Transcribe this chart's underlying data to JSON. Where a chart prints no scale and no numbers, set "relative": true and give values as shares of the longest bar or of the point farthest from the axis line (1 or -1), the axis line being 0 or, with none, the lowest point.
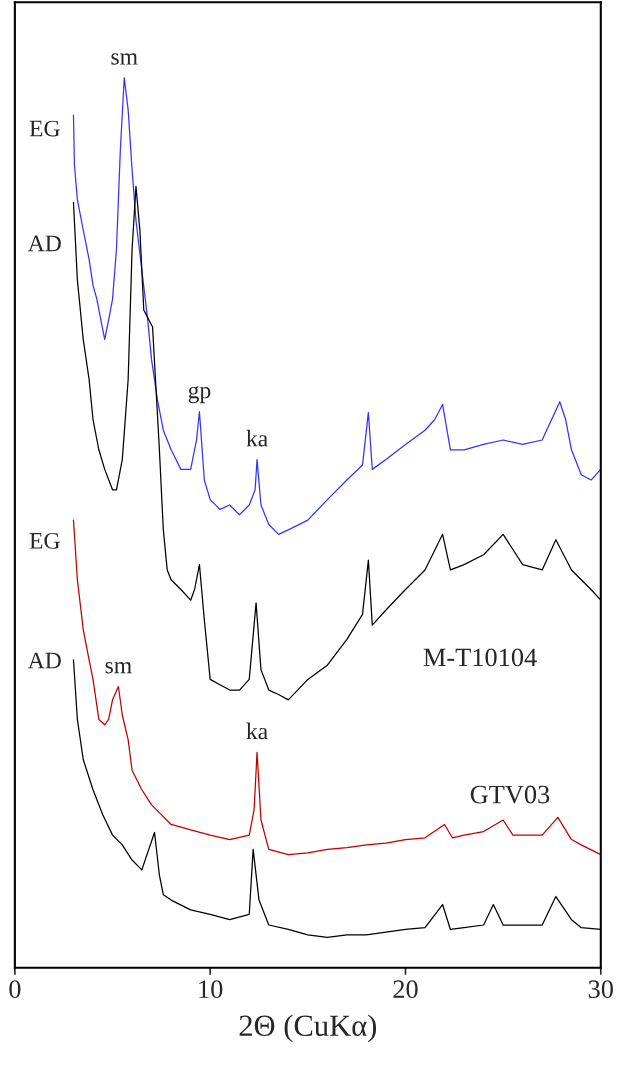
{
  "chart_data": {
    "type": "line",
    "relative": true,
    "xlabel": "2Θ (CuKα)",
    "xlim": [
      0,
      30
    ],
    "xticks": [
      0,
      10,
      20,
      30
    ],
    "grid": false,
    "legend": false,
    "series": [
      {
        "color": "#3333ff",
        "x": [
          3.0,
          3.05,
          3.2,
          3.5,
          3.8,
          4.0,
          4.2,
          4.4,
          4.6,
          4.8,
          5.0,
          5.2,
          5.4,
          5.6,
          5.8,
          6.0,
          6.2,
          6.5,
          6.8,
          7.0,
          7.3,
          7.6,
          8.0,
          8.5,
          9.0,
          9.3,
          9.45,
          9.7,
          10.0,
          10.5,
          11.0,
          11.5,
          12.0,
          12.3,
          12.4,
          12.6,
          13.0,
          13.5,
          14.0,
          15.0,
          16.0,
          17.0,
          17.8,
          18.1,
          18.3,
          19.0,
          20.0,
          21.0,
          21.5,
          21.9,
          22.3,
          23.0,
          24.0,
          25.0,
          26.0,
          27.0,
          27.9,
          28.2,
          28.5,
          29.0,
          29.5,
          30.0
        ],
        "values": [
          0.958,
          0.902,
          0.863,
          0.829,
          0.796,
          0.767,
          0.751,
          0.728,
          0.706,
          0.728,
          0.751,
          0.807,
          0.919,
          1.0,
          0.964,
          0.897,
          0.84,
          0.784,
          0.728,
          0.683,
          0.638,
          0.604,
          0.582,
          0.56,
          0.56,
          0.593,
          0.625,
          0.548,
          0.526,
          0.515,
          0.52,
          0.509,
          0.52,
          0.537,
          0.571,
          0.52,
          0.498,
          0.487,
          0.492,
          0.503,
          0.526,
          0.548,
          0.565,
          0.624,
          0.56,
          0.571,
          0.588,
          0.604,
          0.616,
          0.633,
          0.582,
          0.582,
          0.588,
          0.593,
          0.588,
          0.593,
          0.636,
          0.616,
          0.582,
          0.554,
          0.548,
          0.56
        ]
      },
      {
        "color": "#000000",
        "x": [
          3.0,
          3.2,
          3.5,
          3.8,
          4.0,
          4.3,
          4.6,
          5.0,
          5.2,
          5.5,
          5.8,
          6.0,
          6.2,
          6.4,
          6.6,
          7.05,
          7.2,
          7.4,
          7.6,
          7.8,
          8.0,
          8.5,
          9.0,
          9.2,
          9.45,
          9.7,
          10.0,
          10.5,
          11.0,
          11.5,
          12.0,
          12.35,
          12.6,
          13.0,
          13.5,
          14.0,
          15.0,
          16.0,
          17.0,
          17.8,
          18.1,
          18.3,
          19.0,
          20.0,
          21.0,
          21.9,
          22.3,
          23.0,
          24.0,
          25.0,
          25.5,
          26.0,
          27.0,
          27.7,
          28.5,
          29.0,
          29.5,
          30.0
        ],
        "values": [
          0.86,
          0.773,
          0.706,
          0.661,
          0.616,
          0.582,
          0.56,
          0.537,
          0.537,
          0.571,
          0.661,
          0.807,
          0.878,
          0.829,
          0.739,
          0.72,
          0.661,
          0.582,
          0.492,
          0.447,
          0.436,
          0.425,
          0.413,
          0.425,
          0.453,
          0.391,
          0.324,
          0.318,
          0.312,
          0.312,
          0.324,
          0.41,
          0.335,
          0.312,
          0.307,
          0.301,
          0.324,
          0.34,
          0.369,
          0.397,
          0.458,
          0.385,
          0.402,
          0.425,
          0.447,
          0.487,
          0.447,
          0.453,
          0.464,
          0.487,
          0.47,
          0.453,
          0.447,
          0.481,
          0.447,
          0.436,
          0.425,
          0.413
        ]
      },
      {
        "color": "#c00000",
        "x": [
          3.0,
          3.2,
          3.5,
          3.8,
          4.0,
          4.3,
          4.6,
          4.8,
          5.0,
          5.3,
          5.5,
          5.8,
          6.0,
          6.5,
          7.0,
          7.5,
          8.0,
          9.0,
          10.0,
          11.0,
          12.0,
          12.25,
          12.4,
          12.6,
          13.0,
          14.0,
          15.0,
          16.0,
          17.0,
          18.0,
          19.0,
          20.0,
          21.0,
          22.0,
          22.4,
          23.0,
          24.0,
          25.0,
          25.5,
          26.0,
          27.0,
          27.8,
          28.5,
          29.0,
          30.0
        ],
        "values": [
          0.503,
          0.436,
          0.38,
          0.346,
          0.324,
          0.279,
          0.273,
          0.279,
          0.301,
          0.316,
          0.284,
          0.256,
          0.222,
          0.2,
          0.183,
          0.172,
          0.161,
          0.155,
          0.149,
          0.144,
          0.149,
          0.178,
          0.242,
          0.166,
          0.133,
          0.127,
          0.129,
          0.133,
          0.135,
          0.138,
          0.14,
          0.144,
          0.146,
          0.161,
          0.146,
          0.149,
          0.153,
          0.166,
          0.149,
          0.149,
          0.149,
          0.169,
          0.144,
          0.138,
          0.127
        ]
      },
      {
        "color": "#000000",
        "x": [
          3.0,
          3.2,
          3.5,
          4.0,
          4.5,
          5.0,
          5.5,
          6.0,
          6.5,
          7.15,
          7.4,
          7.6,
          8.0,
          9.0,
          10.0,
          11.0,
          12.0,
          12.2,
          12.5,
          13.0,
          14.0,
          15.0,
          16.0,
          17.0,
          18.0,
          19.0,
          20.0,
          21.0,
          21.9,
          22.3,
          23.0,
          24.0,
          24.5,
          25.0,
          26.0,
          27.0,
          27.7,
          28.5,
          29.0,
          30.0
        ],
        "values": [
          0.346,
          0.279,
          0.234,
          0.2,
          0.172,
          0.149,
          0.138,
          0.121,
          0.11,
          0.152,
          0.104,
          0.082,
          0.076,
          0.065,
          0.06,
          0.054,
          0.06,
          0.133,
          0.076,
          0.048,
          0.043,
          0.037,
          0.034,
          0.037,
          0.037,
          0.04,
          0.043,
          0.045,
          0.071,
          0.043,
          0.045,
          0.048,
          0.071,
          0.048,
          0.048,
          0.048,
          0.08,
          0.054,
          0.045,
          0.043
        ]
      }
    ],
    "annotations": [
      {
        "text": "sm",
        "x": 5.6,
        "y": 1.0
      },
      {
        "text": "gp",
        "x": 9.45,
        "y": 0.625
      },
      {
        "text": "ka",
        "x": 12.4,
        "y": 0.571
      },
      {
        "text": "sm",
        "x": 5.3,
        "y": 0.316
      },
      {
        "text": "ka",
        "x": 12.4,
        "y": 0.242
      },
      "EG",
      "AD",
      "EG",
      "AD",
      "M-T10104",
      "GTV03"
    ]
  }
}
